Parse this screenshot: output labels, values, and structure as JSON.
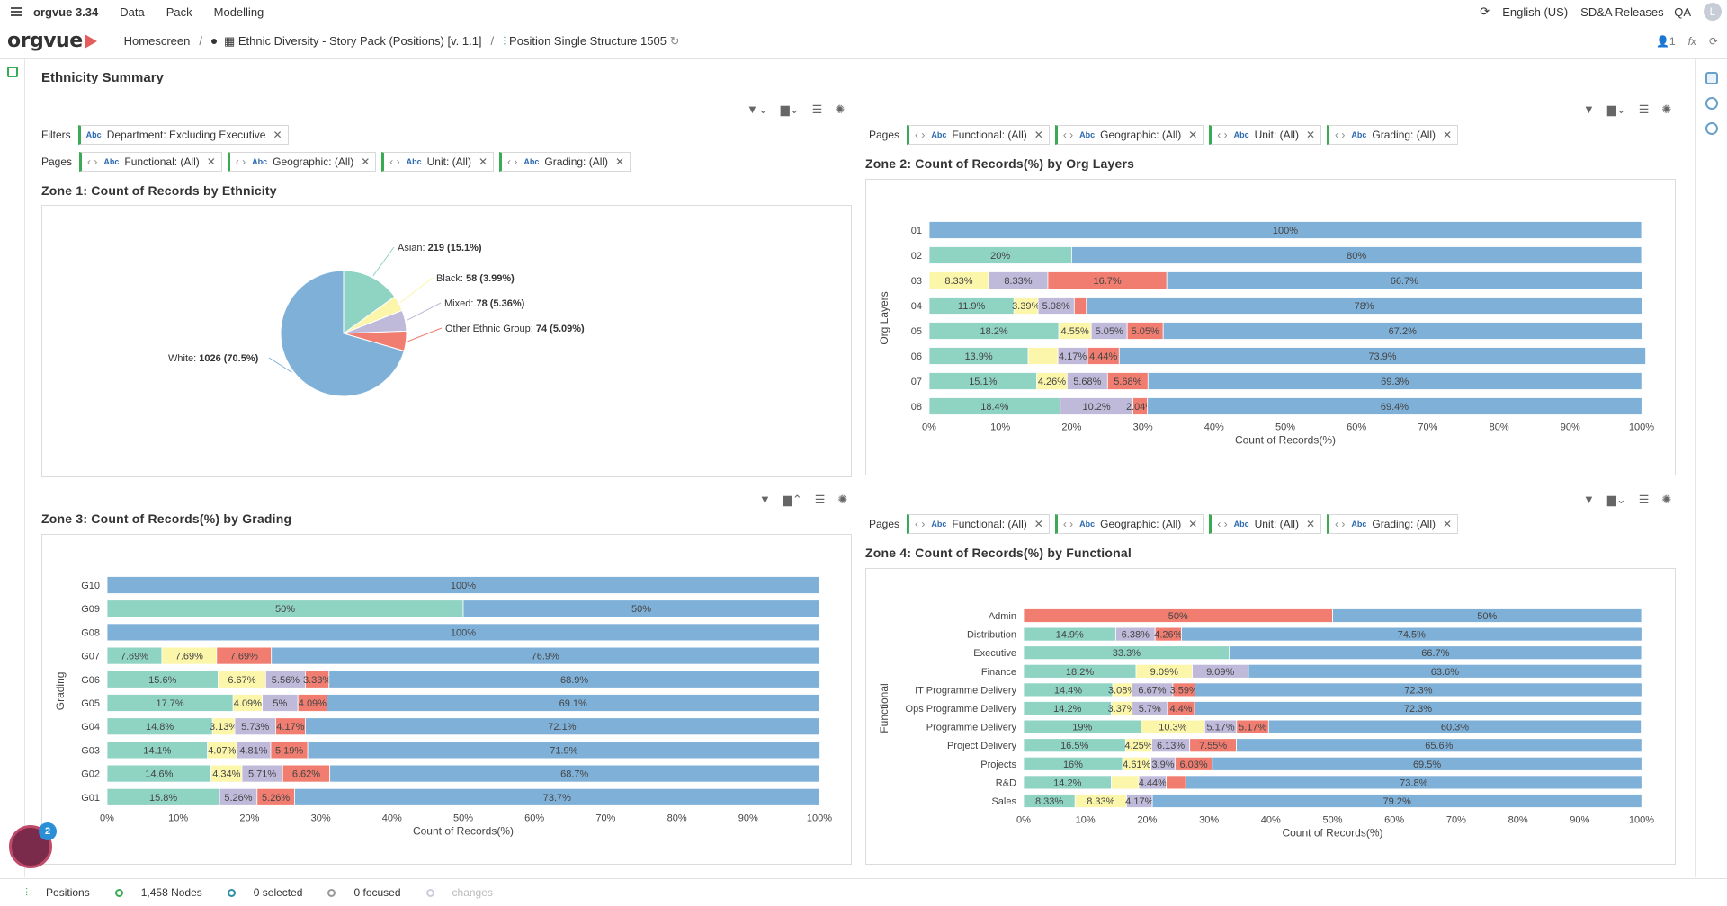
{
  "app": {
    "name": "orgvue 3.34",
    "menu": [
      "Data",
      "Pack",
      "Modelling"
    ],
    "language": "English (US)",
    "tenant": "SD&A Releases - QA",
    "user_initial": "L"
  },
  "breadcrumb": {
    "logo": "orgvue",
    "home": "Homescreen",
    "pack": "Ethnic Diversity - Story Pack (Positions) [v. 1.1]",
    "view": "Position Single Structure 1505",
    "user_count": "1",
    "fx": "fx"
  },
  "page_title": "Ethnicity Summary",
  "zone1": {
    "filters_label": "Filters",
    "filter_chip": "Department: Excluding Executive",
    "pages_label": "Pages",
    "page_chips": [
      "Functional: (All)",
      "Geographic: (All)",
      "Unit: (All)",
      "Grading: (All)"
    ],
    "title": "Zone 1: Count of Records by Ethnicity",
    "labels": [
      {
        "name": "Asian:",
        "value": "219 (15.1%)"
      },
      {
        "name": "Black:",
        "value": "58 (3.99%)"
      },
      {
        "name": "Mixed:",
        "value": "78 (5.36%)"
      },
      {
        "name": "Other Ethnic Group:",
        "value": "74 (5.09%)"
      },
      {
        "name": "White:",
        "value": "1026 (70.5%)"
      }
    ]
  },
  "zone2": {
    "pages_label": "Pages",
    "page_chips": [
      "Functional: (All)",
      "Geographic: (All)",
      "Unit: (All)",
      "Grading: (All)"
    ],
    "title": "Zone 2: Count of Records(%) by Org Layers"
  },
  "zone3": {
    "title": "Zone 3: Count of Records(%) by Grading"
  },
  "zone4": {
    "pages_label": "Pages",
    "page_chips": [
      "Functional: (All)",
      "Geographic: (All)",
      "Unit: (All)",
      "Grading: (All)"
    ],
    "title": "Zone 4: Count of Records(%) by Functional"
  },
  "colors": {
    "Asian": "#8fd3c3",
    "Black": "#fbf6a9",
    "Mixed": "#bfb9da",
    "Other": "#f07d70",
    "White": "#7fb0d8"
  },
  "chart_data": [
    {
      "type": "pie",
      "title": "Zone 1: Count of Records by Ethnicity",
      "categories": [
        "Asian",
        "Black",
        "Mixed",
        "Other Ethnic Group",
        "White"
      ],
      "values": [
        219,
        58,
        78,
        74,
        1026
      ]
    },
    {
      "type": "bar",
      "orientation": "stacked-horizontal",
      "title": "Zone 2: Count of Records(%) by Org Layers",
      "xlabel": "Count of Records(%)",
      "ylabel": "Org Layers",
      "xlim": [
        0,
        100
      ],
      "ticks": [
        "0%",
        "10%",
        "20%",
        "30%",
        "40%",
        "50%",
        "60%",
        "70%",
        "80%",
        "90%",
        "100%"
      ],
      "categories": [
        "01",
        "02",
        "03",
        "04",
        "05",
        "06",
        "07",
        "08"
      ],
      "series": [
        {
          "name": "Asian",
          "values": [
            0,
            20,
            0,
            11.9,
            18.2,
            13.9,
            15.1,
            18.4
          ],
          "labels": [
            "",
            "20%",
            "",
            "11.9%",
            "18.2%",
            "13.9%",
            "15.1%",
            "18.4%"
          ]
        },
        {
          "name": "Black",
          "values": [
            0,
            0,
            8.33,
            3.39,
            4.55,
            4.17,
            4.26,
            0
          ],
          "labels": [
            "",
            "",
            "8.33%",
            "3.39%",
            "4.55%",
            "",
            "4.26%",
            ""
          ]
        },
        {
          "name": "Mixed",
          "values": [
            0,
            0,
            8.33,
            5.08,
            5.05,
            4.17,
            5.68,
            10.2
          ],
          "labels": [
            "",
            "",
            "8.33%",
            "5.08%",
            "5.05%",
            "4.17%",
            "5.68%",
            "10.2%"
          ]
        },
        {
          "name": "Other",
          "values": [
            0,
            0,
            16.7,
            1.7,
            5.05,
            4.44,
            5.68,
            2.04
          ],
          "labels": [
            "",
            "",
            "16.7%",
            "",
            "5.05%",
            "4.44%",
            "5.68%",
            "2.04%"
          ]
        },
        {
          "name": "White",
          "values": [
            100,
            80,
            66.7,
            78,
            67.2,
            73.9,
            69.3,
            69.4
          ],
          "labels": [
            "100%",
            "80%",
            "66.7%",
            "78%",
            "67.2%",
            "73.9%",
            "69.3%",
            "69.4%"
          ]
        }
      ]
    },
    {
      "type": "bar",
      "orientation": "stacked-horizontal",
      "title": "Zone 3: Count of Records(%) by Grading",
      "xlabel": "Count of Records(%)",
      "ylabel": "Grading",
      "xlim": [
        0,
        100
      ],
      "ticks": [
        "0%",
        "10%",
        "20%",
        "30%",
        "40%",
        "50%",
        "60%",
        "70%",
        "80%",
        "90%",
        "100%"
      ],
      "categories": [
        "G10",
        "G09",
        "G08",
        "G07",
        "G06",
        "G05",
        "G04",
        "G03",
        "G02",
        "G01"
      ],
      "series": [
        {
          "name": "Asian",
          "values": [
            0,
            50,
            0,
            7.69,
            15.6,
            17.7,
            14.8,
            14.1,
            14.6,
            15.8
          ],
          "labels": [
            "",
            "50%",
            "",
            "7.69%",
            "15.6%",
            "17.7%",
            "14.8%",
            "14.1%",
            "14.6%",
            "15.8%"
          ]
        },
        {
          "name": "Black",
          "values": [
            0,
            0,
            0,
            7.69,
            6.67,
            4.09,
            3.13,
            4.07,
            4.34,
            0
          ],
          "labels": [
            "",
            "",
            "",
            "7.69%",
            "6.67%",
            "4.09%",
            "3.13%",
            "4.07%",
            "4.34%",
            ""
          ]
        },
        {
          "name": "Mixed",
          "values": [
            0,
            0,
            0,
            0,
            5.56,
            5,
            5.73,
            4.81,
            5.71,
            5.26
          ],
          "labels": [
            "",
            "",
            "",
            "",
            "5.56%",
            "5%",
            "5.73%",
            "4.81%",
            "5.71%",
            "5.26%"
          ]
        },
        {
          "name": "Other",
          "values": [
            0,
            0,
            0,
            7.69,
            3.33,
            4.09,
            4.17,
            5.19,
            6.62,
            5.26
          ],
          "labels": [
            "",
            "",
            "",
            "7.69%",
            "3.33%",
            "4.09%",
            "4.17%",
            "5.19%",
            "6.62%",
            "5.26%"
          ]
        },
        {
          "name": "White",
          "values": [
            100,
            50,
            100,
            76.9,
            68.9,
            69.1,
            72.1,
            71.9,
            68.7,
            73.7
          ],
          "labels": [
            "100%",
            "50%",
            "100%",
            "76.9%",
            "68.9%",
            "69.1%",
            "72.1%",
            "71.9%",
            "68.7%",
            "73.7%"
          ]
        }
      ]
    },
    {
      "type": "bar",
      "orientation": "stacked-horizontal",
      "title": "Zone 4: Count of Records(%) by Functional",
      "xlabel": "Count of Records(%)",
      "ylabel": "Functional",
      "xlim": [
        0,
        100
      ],
      "ticks": [
        "0%",
        "10%",
        "20%",
        "30%",
        "40%",
        "50%",
        "60%",
        "70%",
        "80%",
        "90%",
        "100%"
      ],
      "categories": [
        "Admin",
        "Distribution",
        "Executive",
        "Finance",
        "IT Programme Delivery",
        "Ops Programme Delivery",
        "Programme Delivery",
        "Project Delivery",
        "Projects",
        "R&D",
        "Sales"
      ],
      "series": [
        {
          "name": "Asian",
          "values": [
            0,
            14.9,
            33.3,
            18.2,
            14.4,
            14.2,
            19,
            16.5,
            16,
            14.2,
            8.33
          ],
          "labels": [
            "",
            "14.9%",
            "33.3%",
            "18.2%",
            "14.4%",
            "14.2%",
            "19%",
            "16.5%",
            "16%",
            "14.2%",
            "8.33%"
          ]
        },
        {
          "name": "Black",
          "values": [
            0,
            0,
            0,
            9.09,
            3.08,
            3.37,
            10.3,
            4.25,
            4.61,
            4.44,
            8.33
          ],
          "labels": [
            "",
            "",
            "",
            "9.09%",
            "3.08%",
            "3.37%",
            "10.3%",
            "4.25%",
            "4.61%",
            "",
            "8.33%"
          ]
        },
        {
          "name": "Mixed",
          "values": [
            0,
            6.38,
            0,
            9.09,
            6.67,
            5.7,
            5.17,
            6.13,
            3.9,
            4.44,
            4.17
          ],
          "labels": [
            "",
            "6.38%",
            "",
            "9.09%",
            "6.67%",
            "5.7%",
            "5.17%",
            "6.13%",
            "3.9%",
            "4.44%",
            "4.17%"
          ]
        },
        {
          "name": "Other",
          "values": [
            50,
            4.26,
            0,
            0,
            3.59,
            4.4,
            5.17,
            7.55,
            6.03,
            3.16,
            0
          ],
          "labels": [
            "50%",
            "4.26%",
            "",
            "",
            "3.59%",
            "4.4%",
            "5.17%",
            "7.55%",
            "6.03%",
            "",
            ""
          ]
        },
        {
          "name": "White",
          "values": [
            50,
            74.5,
            66.7,
            63.6,
            72.3,
            72.3,
            60.3,
            65.6,
            69.5,
            73.8,
            79.2
          ],
          "labels": [
            "50%",
            "74.5%",
            "66.7%",
            "63.6%",
            "72.3%",
            "72.3%",
            "60.3%",
            "65.6%",
            "69.5%",
            "73.8%",
            "79.2%"
          ]
        }
      ]
    }
  ],
  "status": {
    "view": "Positions",
    "nodes": "1,458 Nodes",
    "selected": "0 selected",
    "focused": "0 focused",
    "changes": "changes",
    "notifications": "2"
  }
}
